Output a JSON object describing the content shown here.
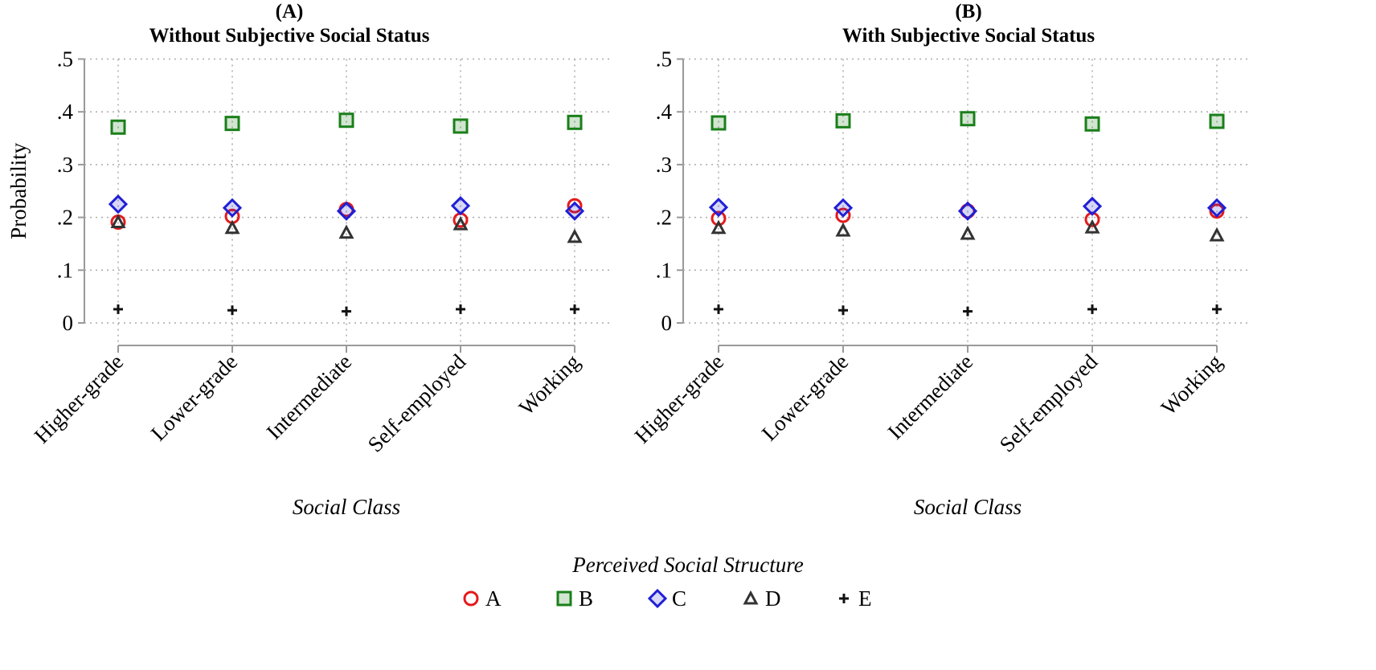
{
  "chart_data": [
    {
      "type": "scatter",
      "panel_label": "(A)",
      "title": "Without Subjective Social Status",
      "xlabel": "Social Class",
      "ylabel": "Probability",
      "ylim": [
        0,
        0.5
      ],
      "yticks": [
        0,
        0.1,
        0.2,
        0.3,
        0.4,
        0.5
      ],
      "ytick_labels": [
        "0",
        ".1",
        ".2",
        ".3",
        ".4",
        ".5"
      ],
      "categories": [
        "Higher-grade",
        "Lower-grade",
        "Intermediate",
        "Self-employed",
        "Working"
      ],
      "grid": true,
      "series": [
        {
          "name": "A",
          "values": [
            0.191,
            0.202,
            0.215,
            0.195,
            0.222
          ]
        },
        {
          "name": "B",
          "values": [
            0.371,
            0.378,
            0.384,
            0.373,
            0.38
          ]
        },
        {
          "name": "C",
          "values": [
            0.225,
            0.218,
            0.212,
            0.222,
            0.212
          ]
        },
        {
          "name": "D",
          "values": [
            0.191,
            0.18,
            0.171,
            0.187,
            0.163
          ]
        },
        {
          "name": "E",
          "values": [
            0.026,
            0.024,
            0.022,
            0.026,
            0.026
          ]
        }
      ]
    },
    {
      "type": "scatter",
      "panel_label": "(B)",
      "title": "With Subjective Social Status",
      "xlabel": "Social Class",
      "ylabel": "",
      "ylim": [
        0,
        0.5
      ],
      "yticks": [
        0,
        0.1,
        0.2,
        0.3,
        0.4,
        0.5
      ],
      "ytick_labels": [
        "0",
        ".1",
        ".2",
        ".3",
        ".4",
        ".5"
      ],
      "categories": [
        "Higher-grade",
        "Lower-grade",
        "Intermediate",
        "Self-employed",
        "Working"
      ],
      "grid": true,
      "series": [
        {
          "name": "A",
          "values": [
            0.198,
            0.204,
            0.212,
            0.196,
            0.212
          ]
        },
        {
          "name": "B",
          "values": [
            0.379,
            0.383,
            0.387,
            0.377,
            0.382
          ]
        },
        {
          "name": "C",
          "values": [
            0.219,
            0.218,
            0.212,
            0.221,
            0.218
          ]
        },
        {
          "name": "D",
          "values": [
            0.18,
            0.175,
            0.169,
            0.181,
            0.166
          ]
        },
        {
          "name": "E",
          "values": [
            0.026,
            0.024,
            0.022,
            0.026,
            0.026
          ]
        }
      ]
    }
  ],
  "legend": {
    "title": "Perceived Social Structure",
    "placement": "bottom-center",
    "items": [
      {
        "name": "A",
        "marker": "circle",
        "color": "#e41a1c"
      },
      {
        "name": "B",
        "marker": "square",
        "color": "#1a7f1a"
      },
      {
        "name": "C",
        "marker": "diamond",
        "color": "#1f1fd6"
      },
      {
        "name": "D",
        "marker": "triangle",
        "color": "#333333"
      },
      {
        "name": "E",
        "marker": "plus",
        "color": "#111111"
      }
    ]
  }
}
